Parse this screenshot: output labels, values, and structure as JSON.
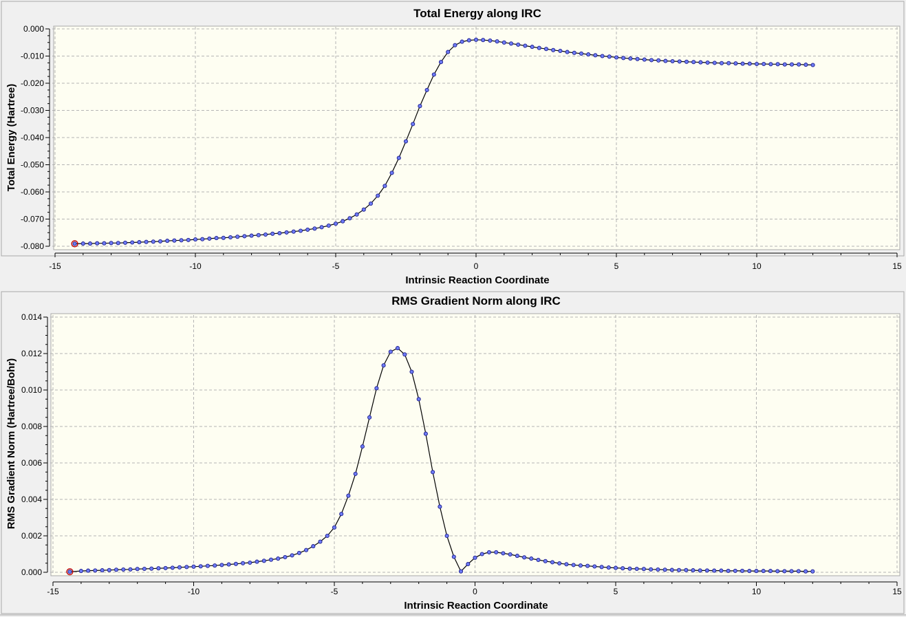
{
  "chart_data": [
    {
      "type": "line",
      "title": "Total Energy along IRC",
      "xlabel": "Intrinsic Reaction Coordinate",
      "ylabel": "Total Energy (Hartree)",
      "xlim": [
        -15,
        15
      ],
      "ylim": [
        -0.08,
        0.0
      ],
      "xticks": [
        "-15",
        "-10",
        "-5",
        "0",
        "5",
        "10",
        "15"
      ],
      "yticks": [
        "0.000",
        "-0.010",
        "-0.020",
        "-0.030",
        "-0.040",
        "-0.050",
        "-0.060",
        "-0.070",
        "-0.080"
      ],
      "grid": true,
      "highlighted_point_x": -14.3,
      "series": [
        {
          "x": [
            -14.3,
            -14.0,
            -13.75,
            -13.5,
            -13.25,
            -13.0,
            -12.75,
            -12.5,
            -12.25,
            -12.0,
            -11.75,
            -11.5,
            -11.25,
            -11.0,
            -10.75,
            -10.5,
            -10.25,
            -10.0,
            -9.75,
            -9.5,
            -9.25,
            -9.0,
            -8.75,
            -8.5,
            -8.25,
            -8.0,
            -7.75,
            -7.5,
            -7.25,
            -7.0,
            -6.75,
            -6.5,
            -6.25,
            -6.0,
            -5.75,
            -5.5,
            -5.25,
            -5.0,
            -4.75,
            -4.5,
            -4.25,
            -4.0,
            -3.75,
            -3.5,
            -3.25,
            -3.0,
            -2.75,
            -2.5,
            -2.25,
            -2.0,
            -1.75,
            -1.5,
            -1.25,
            -1.0,
            -0.75,
            -0.5,
            -0.25,
            0.0,
            0.25,
            0.5,
            0.75,
            1.0,
            1.25,
            1.5,
            1.75,
            2.0,
            2.25,
            2.5,
            2.75,
            3.0,
            3.25,
            3.5,
            3.75,
            4.0,
            4.25,
            4.5,
            4.75,
            5.0,
            5.25,
            5.5,
            5.75,
            6.0,
            6.25,
            6.5,
            6.75,
            7.0,
            7.25,
            7.5,
            7.75,
            8.0,
            8.25,
            8.5,
            8.75,
            9.0,
            9.25,
            9.5,
            9.75,
            10.0,
            10.25,
            10.5,
            10.75,
            11.0,
            11.25,
            11.5,
            11.75,
            12.0
          ],
          "y": [
            -0.0791,
            -0.079,
            -0.079,
            -0.0789,
            -0.0789,
            -0.0788,
            -0.0788,
            -0.0787,
            -0.0786,
            -0.0785,
            -0.0784,
            -0.0783,
            -0.0782,
            -0.078,
            -0.0779,
            -0.0778,
            -0.0777,
            -0.0775,
            -0.0774,
            -0.0772,
            -0.077,
            -0.0769,
            -0.0767,
            -0.0765,
            -0.0763,
            -0.0761,
            -0.0759,
            -0.0757,
            -0.0754,
            -0.0752,
            -0.0749,
            -0.0746,
            -0.0743,
            -0.0739,
            -0.0735,
            -0.073,
            -0.0724,
            -0.0717,
            -0.0708,
            -0.0697,
            -0.0683,
            -0.0665,
            -0.0643,
            -0.0614,
            -0.0578,
            -0.053,
            -0.0475,
            -0.0414,
            -0.035,
            -0.0284,
            -0.0225,
            -0.0168,
            -0.0122,
            -0.0085,
            -0.006,
            -0.0047,
            -0.0042,
            -0.004,
            -0.0041,
            -0.0043,
            -0.0046,
            -0.005,
            -0.0054,
            -0.0058,
            -0.0062,
            -0.0066,
            -0.007,
            -0.0074,
            -0.0078,
            -0.0081,
            -0.0085,
            -0.0088,
            -0.0091,
            -0.0094,
            -0.0097,
            -0.01,
            -0.0102,
            -0.0105,
            -0.0107,
            -0.0109,
            -0.0111,
            -0.0113,
            -0.0115,
            -0.0116,
            -0.0118,
            -0.0119,
            -0.012,
            -0.0121,
            -0.0122,
            -0.0123,
            -0.0124,
            -0.0125,
            -0.0126,
            -0.0126,
            -0.0127,
            -0.0128,
            -0.0128,
            -0.0129,
            -0.0129,
            -0.013,
            -0.013,
            -0.0131,
            -0.0131,
            -0.0131,
            -0.0132,
            -0.0133
          ]
        }
      ]
    },
    {
      "type": "line",
      "title": "RMS Gradient Norm along IRC",
      "xlabel": "Intrinsic Reaction Coordinate",
      "ylabel": "RMS Gradient Norm (Hartree/Bohr)",
      "xlim": [
        -15,
        15
      ],
      "ylim": [
        0.0,
        0.014
      ],
      "xticks": [
        "-15",
        "-10",
        "-5",
        "0",
        "5",
        "10",
        "15"
      ],
      "yticks": [
        "0.014",
        "0.012",
        "0.010",
        "0.008",
        "0.006",
        "0.004",
        "0.002",
        "0.000"
      ],
      "grid": true,
      "highlighted_point_x": -14.4,
      "series": [
        {
          "x": [
            -14.4,
            -14.0,
            -13.75,
            -13.5,
            -13.25,
            -13.0,
            -12.75,
            -12.5,
            -12.25,
            -12.0,
            -11.75,
            -11.5,
            -11.25,
            -11.0,
            -10.75,
            -10.5,
            -10.25,
            -10.0,
            -9.75,
            -9.5,
            -9.25,
            -9.0,
            -8.75,
            -8.5,
            -8.25,
            -8.0,
            -7.75,
            -7.5,
            -7.25,
            -7.0,
            -6.75,
            -6.5,
            -6.25,
            -6.0,
            -5.75,
            -5.5,
            -5.25,
            -5.0,
            -4.75,
            -4.5,
            -4.25,
            -4.0,
            -3.75,
            -3.5,
            -3.25,
            -3.0,
            -2.75,
            -2.5,
            -2.25,
            -2.0,
            -1.75,
            -1.5,
            -1.25,
            -1.0,
            -0.75,
            -0.5,
            -0.25,
            0.0,
            0.25,
            0.5,
            0.75,
            1.0,
            1.25,
            1.5,
            1.75,
            2.0,
            2.25,
            2.5,
            2.75,
            3.0,
            3.25,
            3.5,
            3.75,
            4.0,
            4.25,
            4.5,
            4.75,
            5.0,
            5.25,
            5.5,
            5.75,
            6.0,
            6.25,
            6.5,
            6.75,
            7.0,
            7.25,
            7.5,
            7.75,
            8.0,
            8.25,
            8.5,
            8.75,
            9.0,
            9.25,
            9.5,
            9.75,
            10.0,
            10.25,
            10.5,
            10.75,
            11.0,
            11.25,
            11.5,
            11.75,
            12.0
          ],
          "y": [
            3e-05,
            7e-05,
            9e-05,
            0.0001,
            0.00011,
            0.00012,
            0.00014,
            0.00015,
            0.00016,
            0.00018,
            0.00019,
            0.0002,
            0.00022,
            0.00023,
            0.00025,
            0.00027,
            0.00029,
            0.00031,
            0.00033,
            0.00035,
            0.00037,
            0.0004,
            0.00043,
            0.00046,
            0.0005,
            0.00053,
            0.00058,
            0.00063,
            0.00069,
            0.00075,
            0.00083,
            0.00093,
            0.00106,
            0.00122,
            0.00143,
            0.00168,
            0.002,
            0.00246,
            0.0032,
            0.0042,
            0.0054,
            0.0069,
            0.0085,
            0.0101,
            0.01135,
            0.0121,
            0.0123,
            0.01195,
            0.011,
            0.0095,
            0.0076,
            0.0055,
            0.0036,
            0.002,
            0.00085,
            5e-05,
            0.00045,
            0.0008,
            0.001,
            0.0011,
            0.0011,
            0.00104,
            0.00098,
            0.0009,
            0.00082,
            0.00075,
            0.00068,
            0.00061,
            0.00055,
            0.00049,
            0.00044,
            0.0004,
            0.00037,
            0.00035,
            0.00032,
            0.00029,
            0.00026,
            0.00024,
            0.00022,
            0.0002,
            0.00019,
            0.00018,
            0.00016,
            0.00015,
            0.00014,
            0.00013,
            0.00012,
            0.00012,
            0.00011,
            0.0001,
            0.0001,
            9e-05,
            9e-05,
            8e-05,
            8e-05,
            8e-05,
            7e-05,
            7e-05,
            7e-05,
            7e-05,
            6e-05,
            6e-05,
            6e-05,
            6e-05,
            5e-05,
            5e-05
          ]
        }
      ]
    }
  ]
}
